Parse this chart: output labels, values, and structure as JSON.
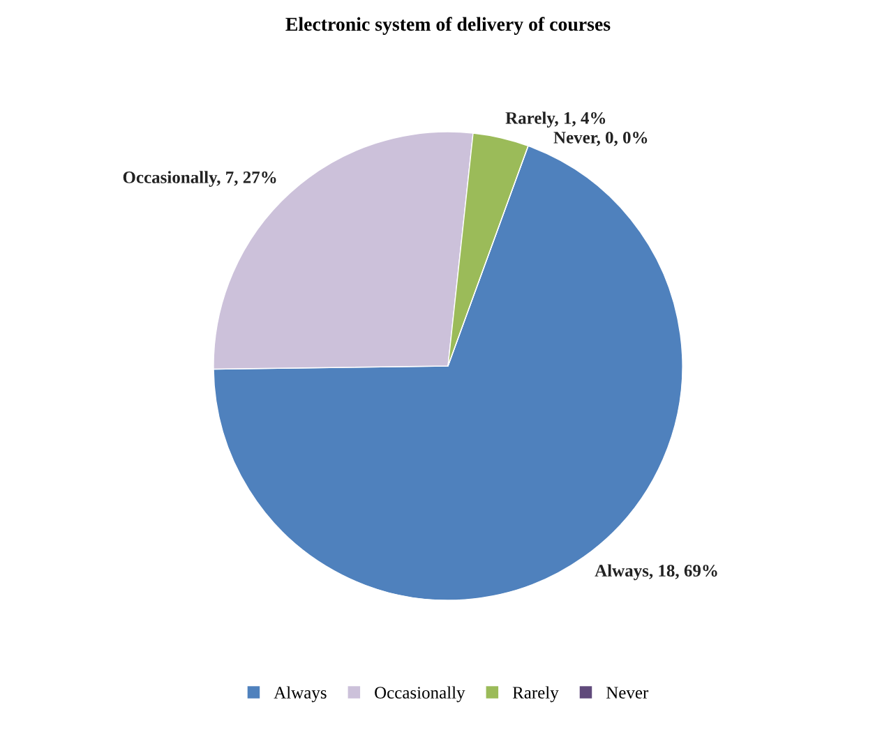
{
  "chart_data": {
    "type": "pie",
    "title": "Electronic system of delivery of courses",
    "categories": [
      "Always",
      "Occasionally",
      "Rarely",
      "Never"
    ],
    "values": [
      18,
      7,
      1,
      0
    ],
    "colors": [
      "#4f81bd",
      "#ccc1da",
      "#9bbb59",
      "#604a7b"
    ],
    "value_labels": [
      "Always, 18, 69%",
      "Occasionally, 7, 27%",
      "Rarely, 1, 4%",
      "Never, 0, 0%"
    ],
    "legend": "bottom"
  }
}
